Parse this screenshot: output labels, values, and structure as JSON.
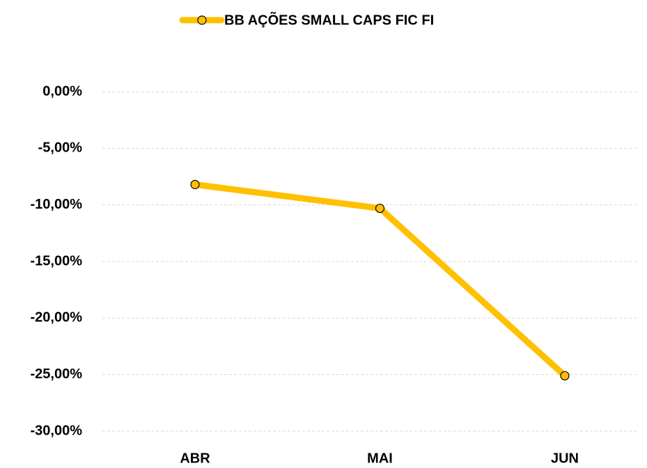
{
  "chart_data": {
    "type": "line",
    "categories": [
      "ABR",
      "MAI",
      "JUN"
    ],
    "series": [
      {
        "name": "BB AÇÕES SMALL CAPS FIC FI",
        "color": "#FFC000",
        "values": [
          -8.2,
          -10.3,
          -25.1
        ]
      }
    ],
    "ylim": [
      -30,
      0
    ],
    "yticks": [
      {
        "value": 0,
        "label": "0,00%"
      },
      {
        "value": -5,
        "label": "-5,00%"
      },
      {
        "value": -10,
        "label": "-10,00%"
      },
      {
        "value": -15,
        "label": "-15,00%"
      },
      {
        "value": -20,
        "label": "-20,00%"
      },
      {
        "value": -25,
        "label": "-25,00%"
      },
      {
        "value": -30,
        "label": "-30,00%"
      }
    ],
    "grid": true,
    "legend": "top"
  }
}
